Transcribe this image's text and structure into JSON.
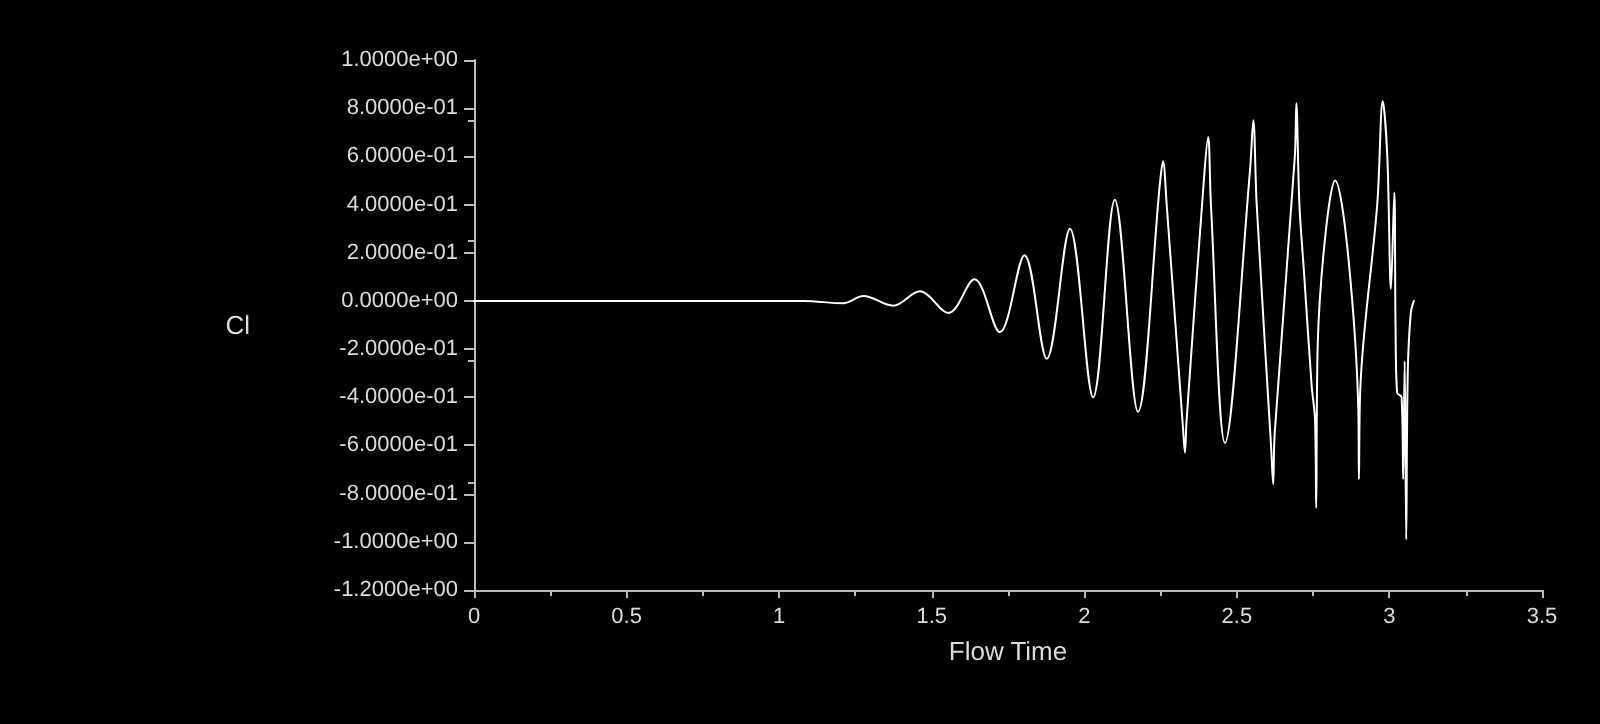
{
  "chart_data": {
    "type": "line",
    "xlabel": "Flow Time",
    "ylabel": "Cl",
    "xlim": [
      0,
      3.5
    ],
    "xticks": [
      0,
      0.5,
      1,
      1.5,
      2,
      2.5,
      3,
      3.5
    ],
    "ylim": [
      -1.2,
      1.0
    ],
    "yticks": [
      {
        "value": -1.2,
        "label": "-1.2000e+00"
      },
      {
        "value": -1.0,
        "label": "-1.0000e+00"
      },
      {
        "value": -0.8,
        "label": "-8.0000e-01"
      },
      {
        "value": -0.6,
        "label": "-6.0000e-01"
      },
      {
        "value": -0.4,
        "label": "-4.0000e-01"
      },
      {
        "value": -0.2,
        "label": "-2.0000e-01"
      },
      {
        "value": 0,
        "label": "0.0000e+00"
      },
      {
        "value": 0.2,
        "label": "2.0000e-01"
      },
      {
        "value": 0.4,
        "label": "4.0000e-01"
      },
      {
        "value": 0.6,
        "label": "6.0000e-01"
      },
      {
        "value": 0.8,
        "label": "8.0000e-01"
      },
      {
        "value": 1.0,
        "label": "1.0000e+00"
      }
    ],
    "grid": false,
    "marker": "none",
    "line_style": "solid",
    "series": [
      {
        "color": "#ffffff",
        "x": [
          0,
          1.0,
          1.08,
          1.21,
          1.276,
          1.374,
          1.461,
          1.555,
          1.64,
          1.723,
          1.804,
          1.877,
          1.953,
          2.029,
          2.1,
          2.176,
          2.248,
          2.258,
          2.27,
          2.323,
          2.33,
          2.335,
          2.393,
          2.406,
          2.415,
          2.461,
          2.543,
          2.554,
          2.565,
          2.612,
          2.619,
          2.624,
          2.69,
          2.695,
          2.705,
          2.72,
          2.745,
          2.756,
          2.76,
          2.765,
          2.822,
          2.898,
          2.9,
          2.905,
          2.96,
          2.978,
          2.993,
          3.005,
          3.016,
          3.02,
          3.025,
          3.04,
          3.045,
          3.05,
          3.055,
          3.06,
          3.07,
          3.08
        ],
        "values": [
          0,
          0,
          0,
          -0.01,
          0.02,
          -0.02,
          0.04,
          -0.05,
          0.09,
          -0.13,
          0.19,
          -0.24,
          0.3,
          -0.4,
          0.42,
          -0.46,
          0.49,
          0.58,
          0.4,
          -0.52,
          -0.63,
          -0.5,
          0.52,
          0.68,
          0.4,
          -0.59,
          0.54,
          0.75,
          0.4,
          -0.6,
          -0.76,
          -0.55,
          0.6,
          0.82,
          0.4,
          0.12,
          -0.35,
          -0.49,
          -0.86,
          -0.18,
          0.5,
          -0.45,
          -0.74,
          -0.35,
          0.4,
          0.83,
          0.6,
          0.05,
          0.45,
          -0.1,
          -0.38,
          -0.4,
          -0.74,
          -0.25,
          -0.99,
          -0.3,
          -0.05,
          0
        ]
      }
    ]
  }
}
